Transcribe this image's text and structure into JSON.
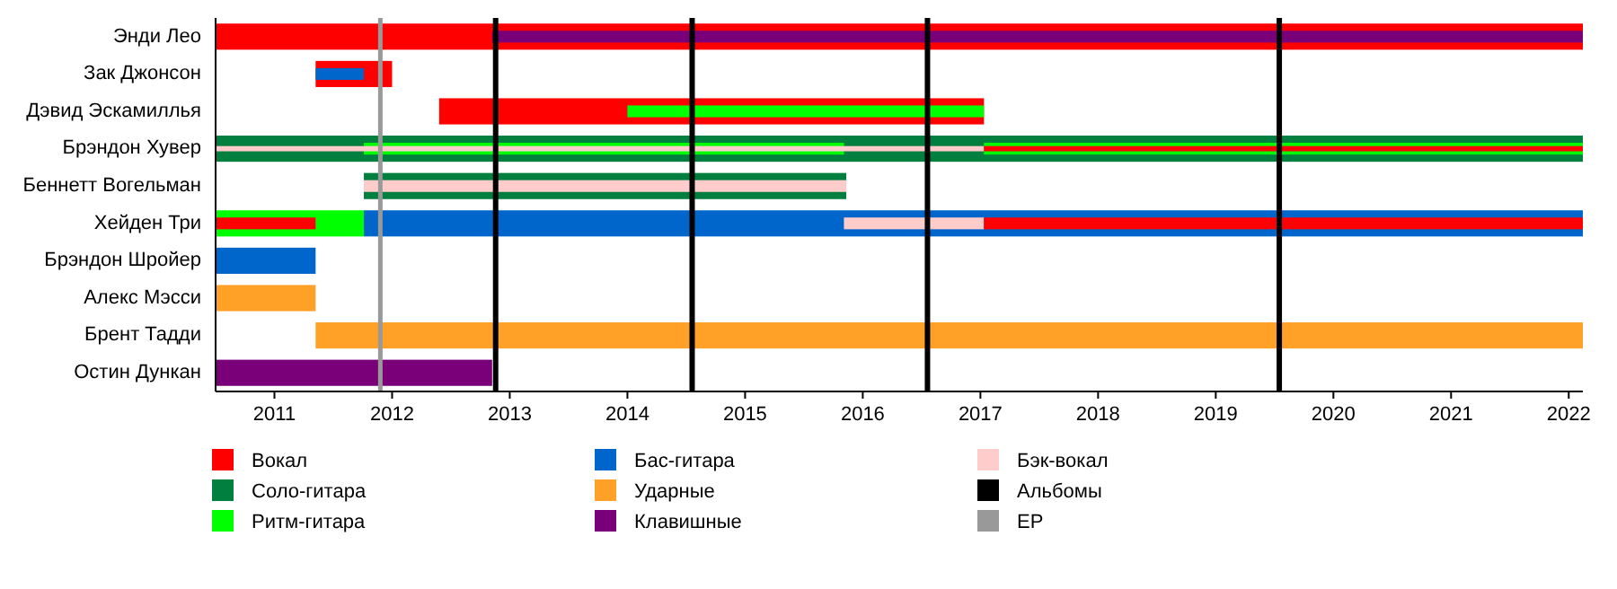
{
  "chart_data": {
    "type": "bar",
    "orientation": "horizontal",
    "categories": [
      "Энди Лео",
      "Зак Джонсон",
      "Дэвид Эскамиллья",
      "Брэндон Хувер",
      "Беннетт Вогельман",
      "Хейден Три",
      "Брэндон Шройер",
      "Алекс Мэсси",
      "Брент Тадди",
      "Остин Дункан"
    ],
    "xlim": [
      2010.5,
      2022.12
    ],
    "xticks": [
      2011,
      2012,
      2013,
      2014,
      2015,
      2016,
      2017,
      2018,
      2019,
      2020,
      2021,
      2022
    ],
    "legend": "bottom",
    "series": [
      {
        "name": "Вокал",
        "color": "#ff0000",
        "base": [
          2010.5,
          2011.35,
          2012.4,
          null,
          null,
          null,
          null,
          null,
          null,
          null
        ],
        "values": [
          11.62,
          0.65,
          4.63,
          null,
          null,
          null,
          null,
          null,
          null,
          null
        ]
      },
      {
        "name": "Соло-гитара",
        "color": "#007f3f",
        "base": [
          null,
          null,
          null,
          2010.5,
          2011.76,
          null,
          null,
          null,
          null,
          null
        ],
        "values": [
          null,
          null,
          null,
          11.62,
          4.1,
          null,
          null,
          null,
          null,
          null
        ]
      },
      {
        "name": "Ритм-гитара",
        "color": "#00ff00",
        "base": [
          null,
          null,
          2014.0,
          2011.76,
          null,
          2010.5,
          null,
          null,
          null,
          null
        ],
        "values": [
          null,
          null,
          3.03,
          4.08,
          null,
          1.26,
          null,
          null,
          null,
          null
        ]
      },
      {
        "color": "#00ff00",
        "base": [
          null,
          null,
          null,
          2017.03,
          null,
          null,
          null,
          null,
          null,
          null
        ],
        "values": [
          null,
          null,
          null,
          5.09,
          null,
          null,
          null,
          null,
          null,
          null
        ]
      },
      {
        "name": "Бас-гитара",
        "color": "#0066cc",
        "base": [
          null,
          2011.35,
          null,
          null,
          null,
          2011.76,
          2010.5,
          null,
          null,
          null
        ],
        "values": [
          null,
          0.41,
          null,
          null,
          null,
          10.36,
          0.85,
          null,
          null,
          null
        ]
      },
      {
        "name": "Ударные",
        "color": "#ffa126",
        "base": [
          null,
          null,
          null,
          null,
          null,
          null,
          null,
          2010.5,
          2011.35,
          null
        ],
        "values": [
          null,
          null,
          null,
          null,
          null,
          null,
          null,
          0.85,
          10.77,
          null
        ]
      },
      {
        "name": "Клавишные",
        "color": "#7a007a",
        "base": [
          2012.85,
          null,
          null,
          null,
          null,
          null,
          null,
          null,
          null,
          2010.5
        ],
        "values": [
          9.27,
          null,
          null,
          null,
          null,
          null,
          null,
          null,
          null,
          2.35
        ]
      },
      {
        "name": "Бэк-вокал",
        "color": "#ffcccc",
        "base": [
          null,
          null,
          null,
          2010.5,
          2011.76,
          2015.84,
          null,
          null,
          null,
          null
        ],
        "values": [
          null,
          null,
          null,
          6.53,
          4.1,
          1.19,
          null,
          null,
          null,
          null
        ]
      },
      {
        "color": "#ff0000",
        "base": [
          null,
          null,
          null,
          2017.03,
          null,
          2010.5,
          null,
          null,
          null,
          null
        ],
        "values": [
          null,
          null,
          null,
          5.09,
          null,
          0.85,
          null,
          null,
          null,
          null
        ]
      },
      {
        "color": "#ff0000",
        "base": [
          null,
          null,
          null,
          null,
          null,
          2017.03,
          null,
          null,
          null,
          null
        ],
        "values": [
          null,
          null,
          null,
          null,
          null,
          5.09,
          null,
          null,
          null,
          null
        ]
      }
    ],
    "ref_lines": [
      {
        "axis": "x",
        "value": 2012.88,
        "label": "Альбомы",
        "color": "#000000"
      },
      {
        "axis": "x",
        "value": 2011.9,
        "label": "EP",
        "color": "#999999"
      },
      {
        "axis": "x",
        "value": 2014.55,
        "color": "#000000"
      },
      {
        "axis": "x",
        "value": 2016.55,
        "color": "#000000"
      },
      {
        "axis": "x",
        "value": 2019.54,
        "color": "#000000"
      }
    ]
  }
}
